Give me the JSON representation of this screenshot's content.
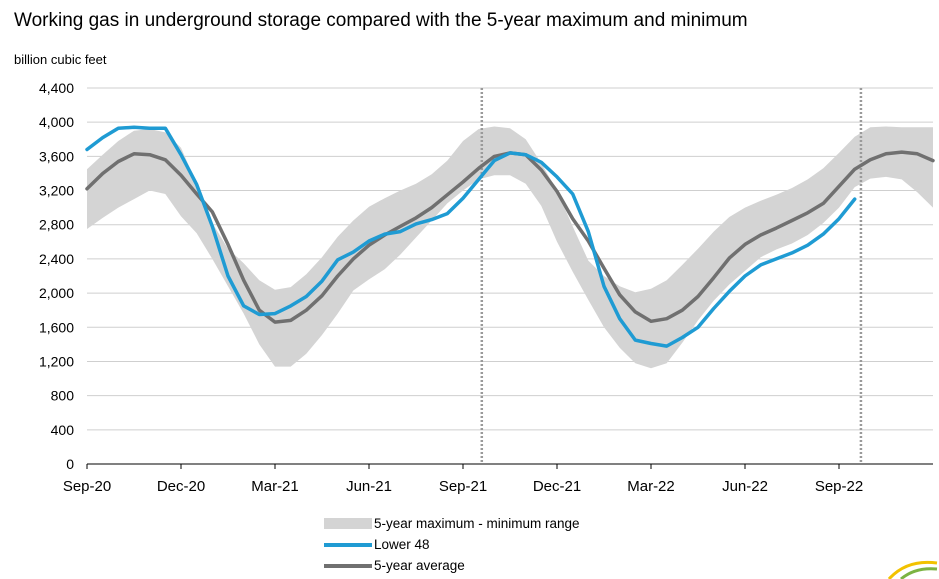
{
  "chart_data": {
    "type": "line",
    "title": "Working gas in underground storage compared with the 5-year maximum and minimum",
    "ylabel": "billion cubic feet",
    "xlabel": "",
    "ylim": [
      0,
      4400
    ],
    "yticks": [
      0,
      400,
      800,
      1200,
      1600,
      2000,
      2400,
      2800,
      3200,
      3600,
      4000,
      4400
    ],
    "ytick_labels": [
      "0",
      "400",
      "800",
      "1,200",
      "1,600",
      "2,000",
      "2,400",
      "2,800",
      "3,200",
      "3,600",
      "4,000",
      "4,400"
    ],
    "x_unit": "months since Sep-20",
    "xlim": [
      0,
      27
    ],
    "xticks": [
      0,
      3,
      6,
      9,
      12,
      15,
      18,
      21,
      24
    ],
    "xtick_labels": [
      "Sep-20",
      "Dec-20",
      "Mar-21",
      "Jun-21",
      "Sep-21",
      "Dec-21",
      "Mar-22",
      "Jun-22",
      "Sep-22"
    ],
    "grid": "horizontal",
    "vertical_markers": [
      12.6,
      24.7
    ],
    "legend_position": "bottom",
    "series": [
      {
        "name": "5-year maximum - minimum range",
        "kind": "band",
        "color": "#d4d4d4",
        "x": [
          0,
          0.5,
          1,
          1.5,
          2,
          2.5,
          3,
          3.5,
          4,
          4.5,
          5,
          5.5,
          6,
          6.5,
          7,
          7.5,
          8,
          8.5,
          9,
          9.5,
          10,
          10.5,
          11,
          11.5,
          12,
          12.5,
          13,
          13.5,
          14,
          14.5,
          15,
          15.5,
          16,
          16.5,
          17,
          17.5,
          18,
          18.5,
          19,
          19.5,
          20,
          20.5,
          21,
          21.5,
          22,
          22.5,
          23,
          23.5,
          24,
          24.5,
          25,
          25.5,
          26,
          26.5,
          27
        ],
        "upper": [
          3450,
          3620,
          3780,
          3900,
          3920,
          3880,
          3700,
          3280,
          2820,
          2520,
          2350,
          2150,
          2040,
          2070,
          2220,
          2420,
          2660,
          2850,
          3010,
          3110,
          3200,
          3280,
          3390,
          3550,
          3780,
          3920,
          3950,
          3930,
          3800,
          3520,
          3200,
          2780,
          2380,
          2200,
          2080,
          2010,
          2050,
          2150,
          2330,
          2520,
          2720,
          2890,
          3000,
          3080,
          3150,
          3230,
          3330,
          3460,
          3640,
          3830,
          3940,
          3950,
          3940,
          3940,
          3940
        ],
        "lower": [
          2750,
          2880,
          3000,
          3100,
          3200,
          3160,
          2900,
          2700,
          2400,
          2080,
          1760,
          1400,
          1140,
          1140,
          1290,
          1510,
          1760,
          2030,
          2160,
          2280,
          2450,
          2650,
          2850,
          3050,
          3200,
          3330,
          3380,
          3380,
          3280,
          3020,
          2600,
          2250,
          1920,
          1600,
          1360,
          1180,
          1120,
          1180,
          1420,
          1680,
          1910,
          2100,
          2260,
          2420,
          2510,
          2580,
          2680,
          2820,
          3000,
          3240,
          3340,
          3360,
          3330,
          3180,
          3000
        ]
      },
      {
        "name": "Lower 48",
        "kind": "line",
        "color": "#1f9bd3",
        "x": [
          0,
          0.5,
          1,
          1.5,
          2,
          2.5,
          3,
          3.5,
          4,
          4.5,
          5,
          5.5,
          6,
          6.5,
          7,
          7.5,
          8,
          8.5,
          9,
          9.5,
          10,
          10.5,
          11,
          11.5,
          12,
          12.5,
          13,
          13.5,
          14,
          14.5,
          15,
          15.5,
          16,
          16.5,
          17,
          17.5,
          18,
          18.5,
          19,
          19.5,
          20,
          20.5,
          21,
          21.5,
          22,
          22.5,
          23,
          23.5,
          24,
          24.5
        ],
        "values": [
          3680,
          3820,
          3930,
          3940,
          3930,
          3930,
          3620,
          3270,
          2780,
          2200,
          1850,
          1750,
          1760,
          1850,
          1960,
          2140,
          2390,
          2480,
          2610,
          2690,
          2720,
          2810,
          2860,
          2930,
          3110,
          3330,
          3550,
          3640,
          3620,
          3530,
          3360,
          3160,
          2720,
          2080,
          1700,
          1450,
          1410,
          1380,
          1480,
          1600,
          1820,
          2020,
          2200,
          2330,
          2400,
          2470,
          2560,
          2690,
          2870,
          3100
        ]
      },
      {
        "name": "5-year average",
        "kind": "line",
        "color": "#707070",
        "x": [
          0,
          0.5,
          1,
          1.5,
          2,
          2.5,
          3,
          3.5,
          4,
          4.5,
          5,
          5.5,
          6,
          6.5,
          7,
          7.5,
          8,
          8.5,
          9,
          9.5,
          10,
          10.5,
          11,
          11.5,
          12,
          12.5,
          13,
          13.5,
          14,
          14.5,
          15,
          15.5,
          16,
          16.5,
          17,
          17.5,
          18,
          18.5,
          19,
          19.5,
          20,
          20.5,
          21,
          21.5,
          22,
          22.5,
          23,
          23.5,
          24,
          24.5,
          25,
          25.5,
          26,
          26.5,
          27
        ],
        "values": [
          3220,
          3400,
          3540,
          3630,
          3620,
          3560,
          3380,
          3160,
          2950,
          2570,
          2150,
          1800,
          1660,
          1680,
          1800,
          1970,
          2200,
          2400,
          2560,
          2680,
          2780,
          2880,
          3000,
          3150,
          3300,
          3460,
          3600,
          3640,
          3620,
          3440,
          3190,
          2870,
          2610,
          2290,
          1980,
          1780,
          1670,
          1700,
          1800,
          1960,
          2180,
          2410,
          2570,
          2680,
          2760,
          2850,
          2940,
          3050,
          3250,
          3450,
          3560,
          3630,
          3650,
          3630,
          3550
        ]
      }
    ],
    "legend": [
      "5-year maximum - minimum range",
      "Lower 48",
      "5-year average"
    ]
  }
}
